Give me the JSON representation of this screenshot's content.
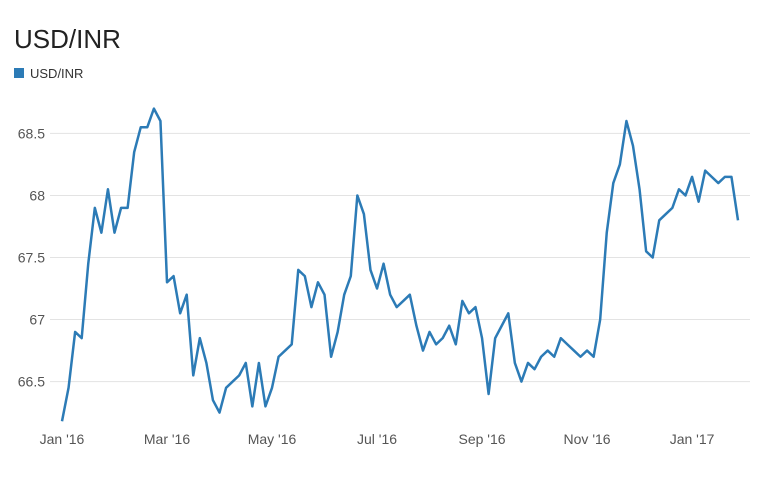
{
  "chart_data": {
    "type": "line",
    "title": "USD/INR",
    "categories": [
      "Jan '16",
      null,
      null,
      null,
      null,
      null,
      null,
      null,
      null,
      null,
      null,
      null,
      null,
      null,
      null,
      null,
      "Mar '16",
      null,
      null,
      null,
      null,
      null,
      null,
      null,
      null,
      null,
      null,
      null,
      null,
      null,
      null,
      null,
      "May '16",
      null,
      null,
      null,
      null,
      null,
      null,
      null,
      null,
      null,
      null,
      null,
      null,
      null,
      null,
      null,
      "Jul '16",
      null,
      null,
      null,
      null,
      null,
      null,
      null,
      null,
      null,
      null,
      null,
      null,
      null,
      null,
      null,
      "Sep '16",
      null,
      null,
      null,
      null,
      null,
      null,
      null,
      null,
      null,
      null,
      null,
      null,
      null,
      null,
      null,
      "Nov '16",
      null,
      null,
      null,
      null,
      null,
      null,
      null,
      null,
      null,
      null,
      null,
      null,
      null,
      null,
      null,
      "Jan '17",
      null,
      null,
      null,
      null,
      null,
      null,
      null
    ],
    "series": [
      {
        "name": "USD/INR",
        "color": "#2c7bb6",
        "values": [
          66.18,
          66.45,
          66.9,
          66.85,
          67.45,
          67.9,
          67.7,
          68.05,
          67.7,
          67.9,
          67.9,
          68.35,
          68.55,
          68.55,
          68.7,
          68.6,
          67.3,
          67.35,
          67.05,
          67.2,
          66.55,
          66.85,
          66.65,
          66.35,
          66.25,
          66.45,
          66.5,
          66.55,
          66.65,
          66.3,
          66.65,
          66.3,
          66.45,
          66.7,
          66.75,
          66.8,
          67.4,
          67.35,
          67.1,
          67.3,
          67.2,
          66.7,
          66.9,
          67.2,
          67.35,
          68.0,
          67.85,
          67.4,
          67.25,
          67.45,
          67.2,
          67.1,
          67.15,
          67.2,
          66.95,
          66.75,
          66.9,
          66.8,
          66.85,
          66.95,
          66.8,
          67.15,
          67.05,
          67.1,
          66.85,
          66.4,
          66.85,
          66.95,
          67.05,
          66.65,
          66.5,
          66.65,
          66.6,
          66.7,
          66.75,
          66.7,
          66.85,
          66.8,
          66.75,
          66.7,
          66.75,
          66.7,
          67.0,
          67.7,
          68.1,
          68.25,
          68.6,
          68.4,
          68.05,
          67.55,
          67.5,
          67.8,
          67.85,
          67.9,
          68.05,
          68.0,
          68.15,
          67.95,
          68.2,
          68.15,
          68.1,
          68.15,
          68.15,
          67.8
        ]
      }
    ],
    "ylim": [
      66.15,
      68.85
    ],
    "yticks": [
      66.5,
      67,
      67.5,
      68,
      68.5
    ],
    "grid": true,
    "legend": "top-left"
  }
}
